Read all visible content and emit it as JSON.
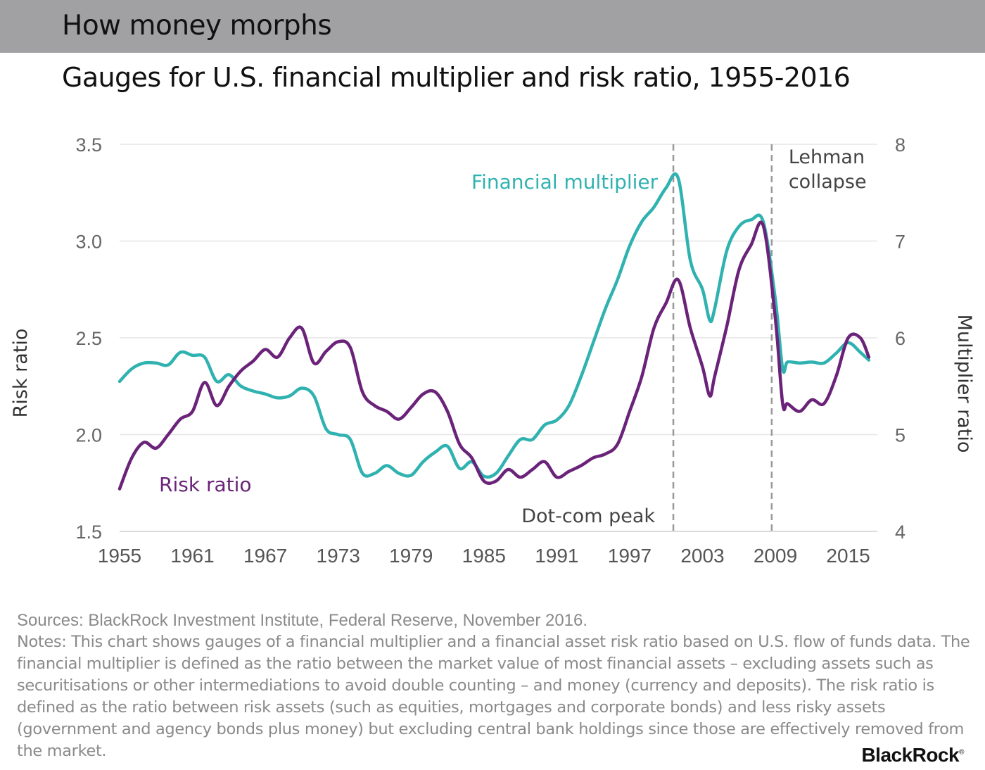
{
  "header": {
    "title": "How money morphs"
  },
  "subtitle": "Gauges for U.S. financial multiplier and risk ratio, 1955-2016",
  "footer": {
    "sources": "Sources: BlackRock Investment Institute, Federal Reserve, November 2016.",
    "notes": "Notes: This chart shows gauges of a financial multiplier and a financial asset risk ratio based on U.S. flow of funds data. The financial multiplier is defined as the ratio between the market value of most financial assets – excluding assets such as securitisations or other intermediations to avoid double counting – and money (currency and deposits). The risk ratio is defined as the ratio between risk assets (such as equities, mortgages and corporate bonds) and less risky assets (government and agency bonds plus money) but excluding central bank holdings since those are effectively removed from the market."
  },
  "logo": {
    "text": "BlackRock",
    "mark": "®"
  },
  "colors": {
    "multiplier": "#2fb2b0",
    "risk": "#6a2379",
    "grid": "#e6e6e6",
    "annotation": "#999999"
  },
  "chart_data": {
    "type": "line",
    "x_ticks": [
      1955,
      1961,
      1967,
      1973,
      1979,
      1985,
      1991,
      1997,
      2003,
      2009,
      2015
    ],
    "x_tick_labels": [
      "1955",
      "1961",
      "1967",
      "1973",
      "1979",
      "1985",
      "1991",
      "1997",
      "2003",
      "2009",
      "2015"
    ],
    "xlim": [
      1955,
      2017.4
    ],
    "left_axis": {
      "label": "Risk ratio",
      "ylim": [
        1.5,
        3.5
      ],
      "ticks": [
        1.5,
        2.0,
        2.5,
        3.0,
        3.5
      ],
      "tick_labels": [
        "1.5",
        "2.0",
        "2.5",
        "3.0",
        "3.5"
      ]
    },
    "right_axis": {
      "label": "Multiplier ratio",
      "ylim": [
        4,
        8
      ],
      "ticks": [
        4,
        5,
        6,
        7,
        8
      ],
      "tick_labels": [
        "4",
        "5",
        "6",
        "7",
        "8"
      ]
    },
    "series": [
      {
        "name": "Financial multiplier",
        "label": "Financial multiplier",
        "axis": "right",
        "points": [
          [
            1955,
            5.55
          ],
          [
            1956,
            5.68
          ],
          [
            1957,
            5.74
          ],
          [
            1958,
            5.74
          ],
          [
            1959,
            5.72
          ],
          [
            1960,
            5.85
          ],
          [
            1961,
            5.82
          ],
          [
            1962,
            5.8
          ],
          [
            1963,
            5.55
          ],
          [
            1964,
            5.62
          ],
          [
            1965,
            5.5
          ],
          [
            1966,
            5.45
          ],
          [
            1967,
            5.42
          ],
          [
            1968,
            5.38
          ],
          [
            1969,
            5.4
          ],
          [
            1970,
            5.48
          ],
          [
            1971,
            5.4
          ],
          [
            1972,
            5.06
          ],
          [
            1973,
            5.0
          ],
          [
            1974,
            4.95
          ],
          [
            1975,
            4.6
          ],
          [
            1976,
            4.6
          ],
          [
            1977,
            4.68
          ],
          [
            1978,
            4.6
          ],
          [
            1979,
            4.58
          ],
          [
            1980,
            4.72
          ],
          [
            1981,
            4.82
          ],
          [
            1982,
            4.88
          ],
          [
            1983,
            4.65
          ],
          [
            1984,
            4.72
          ],
          [
            1985,
            4.57
          ],
          [
            1986,
            4.6
          ],
          [
            1987,
            4.78
          ],
          [
            1988,
            4.95
          ],
          [
            1989,
            4.95
          ],
          [
            1990,
            5.1
          ],
          [
            1991,
            5.15
          ],
          [
            1992,
            5.3
          ],
          [
            1993,
            5.6
          ],
          [
            1994,
            5.95
          ],
          [
            1995,
            6.3
          ],
          [
            1996,
            6.6
          ],
          [
            1997,
            6.95
          ],
          [
            1998,
            7.2
          ],
          [
            1999,
            7.35
          ],
          [
            2000,
            7.55
          ],
          [
            2001,
            7.65
          ],
          [
            2002,
            6.8
          ],
          [
            2003,
            6.5
          ],
          [
            2003.6,
            6.18
          ],
          [
            2004,
            6.3
          ],
          [
            2005,
            6.9
          ],
          [
            2006,
            7.15
          ],
          [
            2007,
            7.22
          ],
          [
            2008,
            7.2
          ],
          [
            2009,
            6.4
          ],
          [
            2009.6,
            5.68
          ],
          [
            2010,
            5.75
          ],
          [
            2011,
            5.74
          ],
          [
            2012,
            5.75
          ],
          [
            2013,
            5.74
          ],
          [
            2014,
            5.84
          ],
          [
            2015,
            5.95
          ],
          [
            2016,
            5.85
          ],
          [
            2016.7,
            5.77
          ]
        ]
      },
      {
        "name": "Risk ratio",
        "label": "Risk ratio",
        "axis": "left",
        "points": [
          [
            1955,
            1.72
          ],
          [
            1956,
            1.88
          ],
          [
            1957,
            1.96
          ],
          [
            1958,
            1.93
          ],
          [
            1959,
            2.0
          ],
          [
            1960,
            2.08
          ],
          [
            1961,
            2.12
          ],
          [
            1962,
            2.27
          ],
          [
            1963,
            2.15
          ],
          [
            1964,
            2.25
          ],
          [
            1965,
            2.33
          ],
          [
            1966,
            2.38
          ],
          [
            1967,
            2.44
          ],
          [
            1968,
            2.4
          ],
          [
            1969,
            2.5
          ],
          [
            1970,
            2.55
          ],
          [
            1971,
            2.37
          ],
          [
            1972,
            2.43
          ],
          [
            1973,
            2.48
          ],
          [
            1974,
            2.45
          ],
          [
            1975,
            2.22
          ],
          [
            1976,
            2.15
          ],
          [
            1977,
            2.12
          ],
          [
            1978,
            2.08
          ],
          [
            1979,
            2.14
          ],
          [
            1980,
            2.21
          ],
          [
            1981,
            2.22
          ],
          [
            1982,
            2.12
          ],
          [
            1983,
            1.95
          ],
          [
            1984,
            1.88
          ],
          [
            1985,
            1.76
          ],
          [
            1986,
            1.76
          ],
          [
            1987,
            1.82
          ],
          [
            1988,
            1.78
          ],
          [
            1989,
            1.82
          ],
          [
            1990,
            1.86
          ],
          [
            1991,
            1.78
          ],
          [
            1992,
            1.81
          ],
          [
            1993,
            1.84
          ],
          [
            1994,
            1.88
          ],
          [
            1995,
            1.9
          ],
          [
            1996,
            1.95
          ],
          [
            1997,
            2.12
          ],
          [
            1998,
            2.3
          ],
          [
            1999,
            2.55
          ],
          [
            2000,
            2.68
          ],
          [
            2001,
            2.8
          ],
          [
            2002,
            2.55
          ],
          [
            2003,
            2.35
          ],
          [
            2003.6,
            2.2
          ],
          [
            2004,
            2.3
          ],
          [
            2005,
            2.56
          ],
          [
            2006,
            2.85
          ],
          [
            2007,
            2.98
          ],
          [
            2008,
            3.08
          ],
          [
            2009,
            2.6
          ],
          [
            2009.6,
            2.16
          ],
          [
            2010,
            2.16
          ],
          [
            2011,
            2.12
          ],
          [
            2012,
            2.18
          ],
          [
            2013,
            2.16
          ],
          [
            2014,
            2.3
          ],
          [
            2015,
            2.5
          ],
          [
            2016,
            2.5
          ],
          [
            2016.7,
            2.4
          ]
        ]
      }
    ],
    "annotations": [
      {
        "x": 2000.6,
        "label": "Dot-com peak",
        "label_lines": [
          "Dot-com peak"
        ]
      },
      {
        "x": 2008.7,
        "label": "Lehman collapse",
        "label_lines": [
          "Lehman",
          "collapse"
        ]
      }
    ]
  }
}
